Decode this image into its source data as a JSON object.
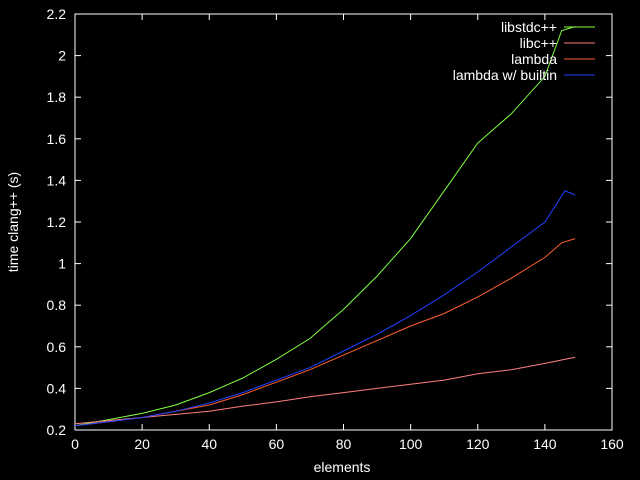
{
  "chart_data": {
    "type": "line",
    "xlabel": "elements",
    "ylabel": "time clang++ (s)",
    "xlim": [
      0,
      160
    ],
    "ylim": [
      0.2,
      2.2
    ],
    "xticks": [
      0,
      20,
      40,
      60,
      80,
      100,
      120,
      140,
      160
    ],
    "yticks": [
      0.2,
      0.4,
      0.6,
      0.8,
      1,
      1.2,
      1.4,
      1.6,
      1.8,
      2,
      2.2
    ],
    "ytick_labels": [
      "0.2",
      "0.4",
      "0.6",
      "0.8",
      "1",
      "1.2",
      "1.4",
      "1.6",
      "1.8",
      "2",
      "2.2"
    ],
    "grid": false,
    "legend_position": "top-right",
    "background": "#000000",
    "axis_color": "#ffffff",
    "series": [
      {
        "name": "libstdc++",
        "color": "#80ff40",
        "x": [
          0,
          10,
          20,
          30,
          40,
          50,
          60,
          70,
          80,
          90,
          100,
          110,
          120,
          130,
          140,
          145,
          149
        ],
        "y": [
          0.22,
          0.25,
          0.28,
          0.32,
          0.38,
          0.45,
          0.54,
          0.64,
          0.78,
          0.94,
          1.12,
          1.35,
          1.58,
          1.72,
          1.9,
          2.12,
          2.14
        ]
      },
      {
        "name": "libc++",
        "color": "#ff8080",
        "x": [
          0,
          10,
          20,
          30,
          40,
          50,
          60,
          70,
          80,
          90,
          100,
          110,
          120,
          130,
          140,
          149
        ],
        "y": [
          0.23,
          0.245,
          0.26,
          0.275,
          0.29,
          0.315,
          0.335,
          0.36,
          0.38,
          0.4,
          0.42,
          0.44,
          0.47,
          0.49,
          0.52,
          0.55
        ]
      },
      {
        "name": "lambda",
        "color": "#ff6030",
        "x": [
          0,
          10,
          20,
          30,
          40,
          50,
          60,
          70,
          80,
          90,
          100,
          110,
          120,
          130,
          140,
          145,
          149
        ],
        "y": [
          0.22,
          0.24,
          0.26,
          0.29,
          0.32,
          0.37,
          0.43,
          0.49,
          0.56,
          0.63,
          0.7,
          0.76,
          0.84,
          0.93,
          1.03,
          1.1,
          1.12
        ]
      },
      {
        "name": "lambda w/ builtin",
        "color": "#2040ff",
        "x": [
          0,
          10,
          20,
          30,
          40,
          50,
          60,
          70,
          80,
          90,
          100,
          110,
          120,
          130,
          140,
          146,
          149
        ],
        "y": [
          0.22,
          0.24,
          0.26,
          0.29,
          0.33,
          0.38,
          0.44,
          0.5,
          0.58,
          0.66,
          0.75,
          0.85,
          0.96,
          1.08,
          1.2,
          1.35,
          1.33
        ]
      }
    ]
  }
}
